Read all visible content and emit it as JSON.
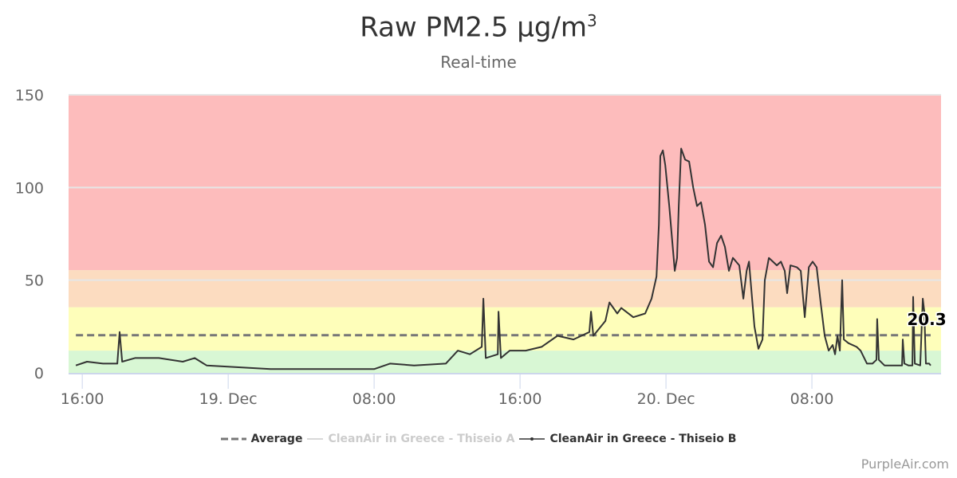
{
  "chart_data": {
    "type": "line",
    "title": "Raw PM2.5 µg/m",
    "title_sup": "3",
    "subtitle": "Real-time",
    "xlabel": "",
    "ylabel": "",
    "x_unit": "hours since 18 Dec 16:00",
    "xlim": [
      -0.75,
      47.08
    ],
    "ylim": [
      0,
      150
    ],
    "y_ticks": [
      0,
      50,
      100,
      150
    ],
    "x_ticks": [
      {
        "t": 0,
        "label": "16:00"
      },
      {
        "t": 8,
        "label": "19. Dec"
      },
      {
        "t": 16,
        "label": "08:00"
      },
      {
        "t": 24,
        "label": "16:00"
      },
      {
        "t": 32,
        "label": "20. Dec"
      },
      {
        "t": 40,
        "label": "08:00"
      }
    ],
    "grid": true,
    "bands": [
      {
        "from": 0,
        "to": 12,
        "color": "#d8f7d4"
      },
      {
        "from": 12,
        "to": 35.4,
        "color": "#fefeba"
      },
      {
        "from": 35.4,
        "to": 55.4,
        "color": "#fcdcc0"
      },
      {
        "from": 55.4,
        "to": 150,
        "color": "#fdbcbc"
      }
    ],
    "average": {
      "name": "Average",
      "value": 20.3,
      "label": "20.3",
      "color": "#777777"
    },
    "series": [
      {
        "name": "CleanAir in Greece - Thiseio A",
        "visible": false,
        "color": "#cccccc",
        "points": []
      },
      {
        "name": "CleanAir in Greece - Thiseio B",
        "visible": true,
        "color": "#333333",
        "points": [
          [
            -0.35,
            4
          ],
          [
            0.26,
            6
          ],
          [
            1.14,
            5
          ],
          [
            1.92,
            5
          ],
          [
            2.05,
            22
          ],
          [
            2.19,
            6
          ],
          [
            2.89,
            8
          ],
          [
            4.2,
            8
          ],
          [
            5.51,
            6
          ],
          [
            6.16,
            8
          ],
          [
            6.82,
            4
          ],
          [
            8.57,
            3
          ],
          [
            10.32,
            2
          ],
          [
            12.07,
            2
          ],
          [
            13.81,
            2
          ],
          [
            16.0,
            2
          ],
          [
            16.87,
            5
          ],
          [
            18.19,
            4
          ],
          [
            19.93,
            5
          ],
          [
            20.59,
            12
          ],
          [
            21.25,
            10
          ],
          [
            21.9,
            14
          ],
          [
            21.99,
            40
          ],
          [
            22.12,
            8
          ],
          [
            22.78,
            10
          ],
          [
            22.82,
            33
          ],
          [
            22.95,
            8
          ],
          [
            23.43,
            12
          ],
          [
            24.31,
            12
          ],
          [
            25.18,
            14
          ],
          [
            26.05,
            20
          ],
          [
            26.93,
            18
          ],
          [
            27.8,
            22
          ],
          [
            27.89,
            33
          ],
          [
            28.02,
            20
          ],
          [
            28.68,
            28
          ],
          [
            28.9,
            38
          ],
          [
            29.33,
            32
          ],
          [
            29.55,
            35
          ],
          [
            30.21,
            30
          ],
          [
            30.86,
            32
          ],
          [
            31.21,
            40
          ],
          [
            31.48,
            52
          ],
          [
            31.61,
            80
          ],
          [
            31.69,
            117
          ],
          [
            31.83,
            120
          ],
          [
            31.96,
            112
          ],
          [
            32.18,
            90
          ],
          [
            32.48,
            55
          ],
          [
            32.61,
            62
          ],
          [
            32.7,
            90
          ],
          [
            32.83,
            121
          ],
          [
            33.05,
            115
          ],
          [
            33.27,
            114
          ],
          [
            33.49,
            100
          ],
          [
            33.7,
            90
          ],
          [
            33.92,
            92
          ],
          [
            34.14,
            80
          ],
          [
            34.36,
            60
          ],
          [
            34.58,
            57
          ],
          [
            34.8,
            70
          ],
          [
            35.02,
            74
          ],
          [
            35.23,
            68
          ],
          [
            35.45,
            55
          ],
          [
            35.67,
            62
          ],
          [
            36.02,
            58
          ],
          [
            36.24,
            40
          ],
          [
            36.42,
            55
          ],
          [
            36.55,
            60
          ],
          [
            36.68,
            45
          ],
          [
            36.85,
            25
          ],
          [
            37.07,
            13
          ],
          [
            37.29,
            18
          ],
          [
            37.42,
            50
          ],
          [
            37.64,
            62
          ],
          [
            37.86,
            60
          ],
          [
            38.08,
            58
          ],
          [
            38.3,
            60
          ],
          [
            38.51,
            55
          ],
          [
            38.64,
            43
          ],
          [
            38.82,
            58
          ],
          [
            39.17,
            57
          ],
          [
            39.39,
            55
          ],
          [
            39.61,
            30
          ],
          [
            39.83,
            57
          ],
          [
            40.04,
            60
          ],
          [
            40.26,
            57
          ],
          [
            40.48,
            38
          ],
          [
            40.7,
            20
          ],
          [
            40.92,
            12
          ],
          [
            41.14,
            15
          ],
          [
            41.27,
            10
          ],
          [
            41.4,
            20
          ],
          [
            41.53,
            12
          ],
          [
            41.66,
            50
          ],
          [
            41.75,
            18
          ],
          [
            42.01,
            16
          ],
          [
            42.45,
            14
          ],
          [
            42.67,
            12
          ],
          [
            43.02,
            5
          ],
          [
            43.32,
            5
          ],
          [
            43.54,
            7
          ],
          [
            43.58,
            29
          ],
          [
            43.67,
            7
          ],
          [
            43.98,
            4
          ],
          [
            44.63,
            4
          ],
          [
            44.94,
            4
          ],
          [
            44.98,
            18
          ],
          [
            45.07,
            5
          ],
          [
            45.29,
            4
          ],
          [
            45.51,
            4
          ],
          [
            45.55,
            41
          ],
          [
            45.64,
            5
          ],
          [
            45.94,
            4
          ],
          [
            46.08,
            40
          ],
          [
            46.16,
            33
          ],
          [
            46.25,
            5
          ],
          [
            46.43,
            5
          ],
          [
            46.51,
            4
          ]
        ]
      }
    ],
    "legend_position": "bottom"
  },
  "credits": "PurpleAir.com"
}
